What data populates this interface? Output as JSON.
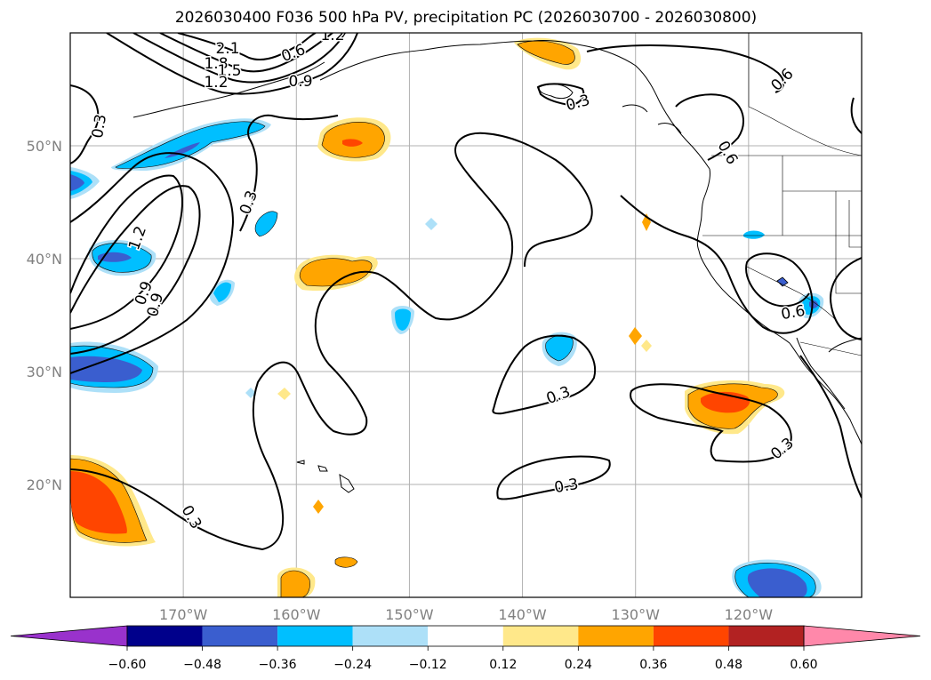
{
  "chart_data": {
    "type": "contour",
    "title": "2026030400 F036 500 hPa PV, precipitation PC (2026030700 - 2026030800)",
    "lon_range": [
      -180,
      -110
    ],
    "lat_range": [
      10,
      60
    ],
    "lon_ticks": [
      {
        "value": -170,
        "label": "170°W"
      },
      {
        "value": -160,
        "label": "160°W"
      },
      {
        "value": -150,
        "label": "150°W"
      },
      {
        "value": -140,
        "label": "140°W"
      },
      {
        "value": -130,
        "label": "130°W"
      },
      {
        "value": -120,
        "label": "120°W"
      }
    ],
    "lat_ticks": [
      {
        "value": 50,
        "label": "50°N"
      },
      {
        "value": 40,
        "label": "40°N"
      },
      {
        "value": 30,
        "label": "30°N"
      },
      {
        "value": 20,
        "label": "20°N"
      }
    ],
    "grid": true,
    "colorbar": {
      "orientation": "horizontal",
      "extend": "both",
      "boundaries": [
        -0.6,
        -0.48,
        -0.36,
        -0.24,
        -0.12,
        0.12,
        0.24,
        0.36,
        0.48,
        0.6
      ],
      "tick_labels": [
        "−0.60",
        "−0.48",
        "−0.36",
        "−0.24",
        "−0.12",
        "0.12",
        "0.24",
        "0.36",
        "0.48",
        "0.60"
      ],
      "colors": [
        "#9932CC",
        "#00008B",
        "#3A5ECF",
        "#00BFFF",
        "#ADE0F8",
        "#FFFFFF",
        "#FFE88A",
        "#FFA500",
        "#FF4500",
        "#B22222",
        "#FF88AA"
      ]
    },
    "contour_labels": [
      "2.1",
      "1.8",
      "1.5",
      "1.2",
      "0.9",
      "0.6",
      "0.3",
      "1.2",
      "0.3",
      "1.2",
      "0.9",
      "0.3",
      "0.3",
      "0.3",
      "0.3",
      "0.6",
      "0.6",
      "0.6",
      "0.3",
      "0.9"
    ],
    "precip_anomalies": [
      {
        "lon": -159.5,
        "lat": 50.0,
        "value": 0.4
      },
      {
        "lon": -157.5,
        "lat": 39.0,
        "value": 0.3
      },
      {
        "lon": -177.0,
        "lat": 18.5,
        "value": 0.4
      },
      {
        "lon": -122.0,
        "lat": 27.5,
        "value": 0.4
      },
      {
        "lon": -135.0,
        "lat": 57.5,
        "value": 0.3
      },
      {
        "lon": -152.0,
        "lat": 12.0,
        "value": 0.25
      },
      {
        "lon": -176.0,
        "lat": 30.0,
        "value": -0.45
      },
      {
        "lon": -175.0,
        "lat": 40.0,
        "value": -0.4
      },
      {
        "lon": -168.0,
        "lat": 50.0,
        "value": -0.4
      },
      {
        "lon": -117.0,
        "lat": 11.5,
        "value": -0.45
      },
      {
        "lon": -136.0,
        "lat": 32.0,
        "value": -0.3
      },
      {
        "lon": -150.0,
        "lat": 34.5,
        "value": -0.3
      }
    ]
  }
}
